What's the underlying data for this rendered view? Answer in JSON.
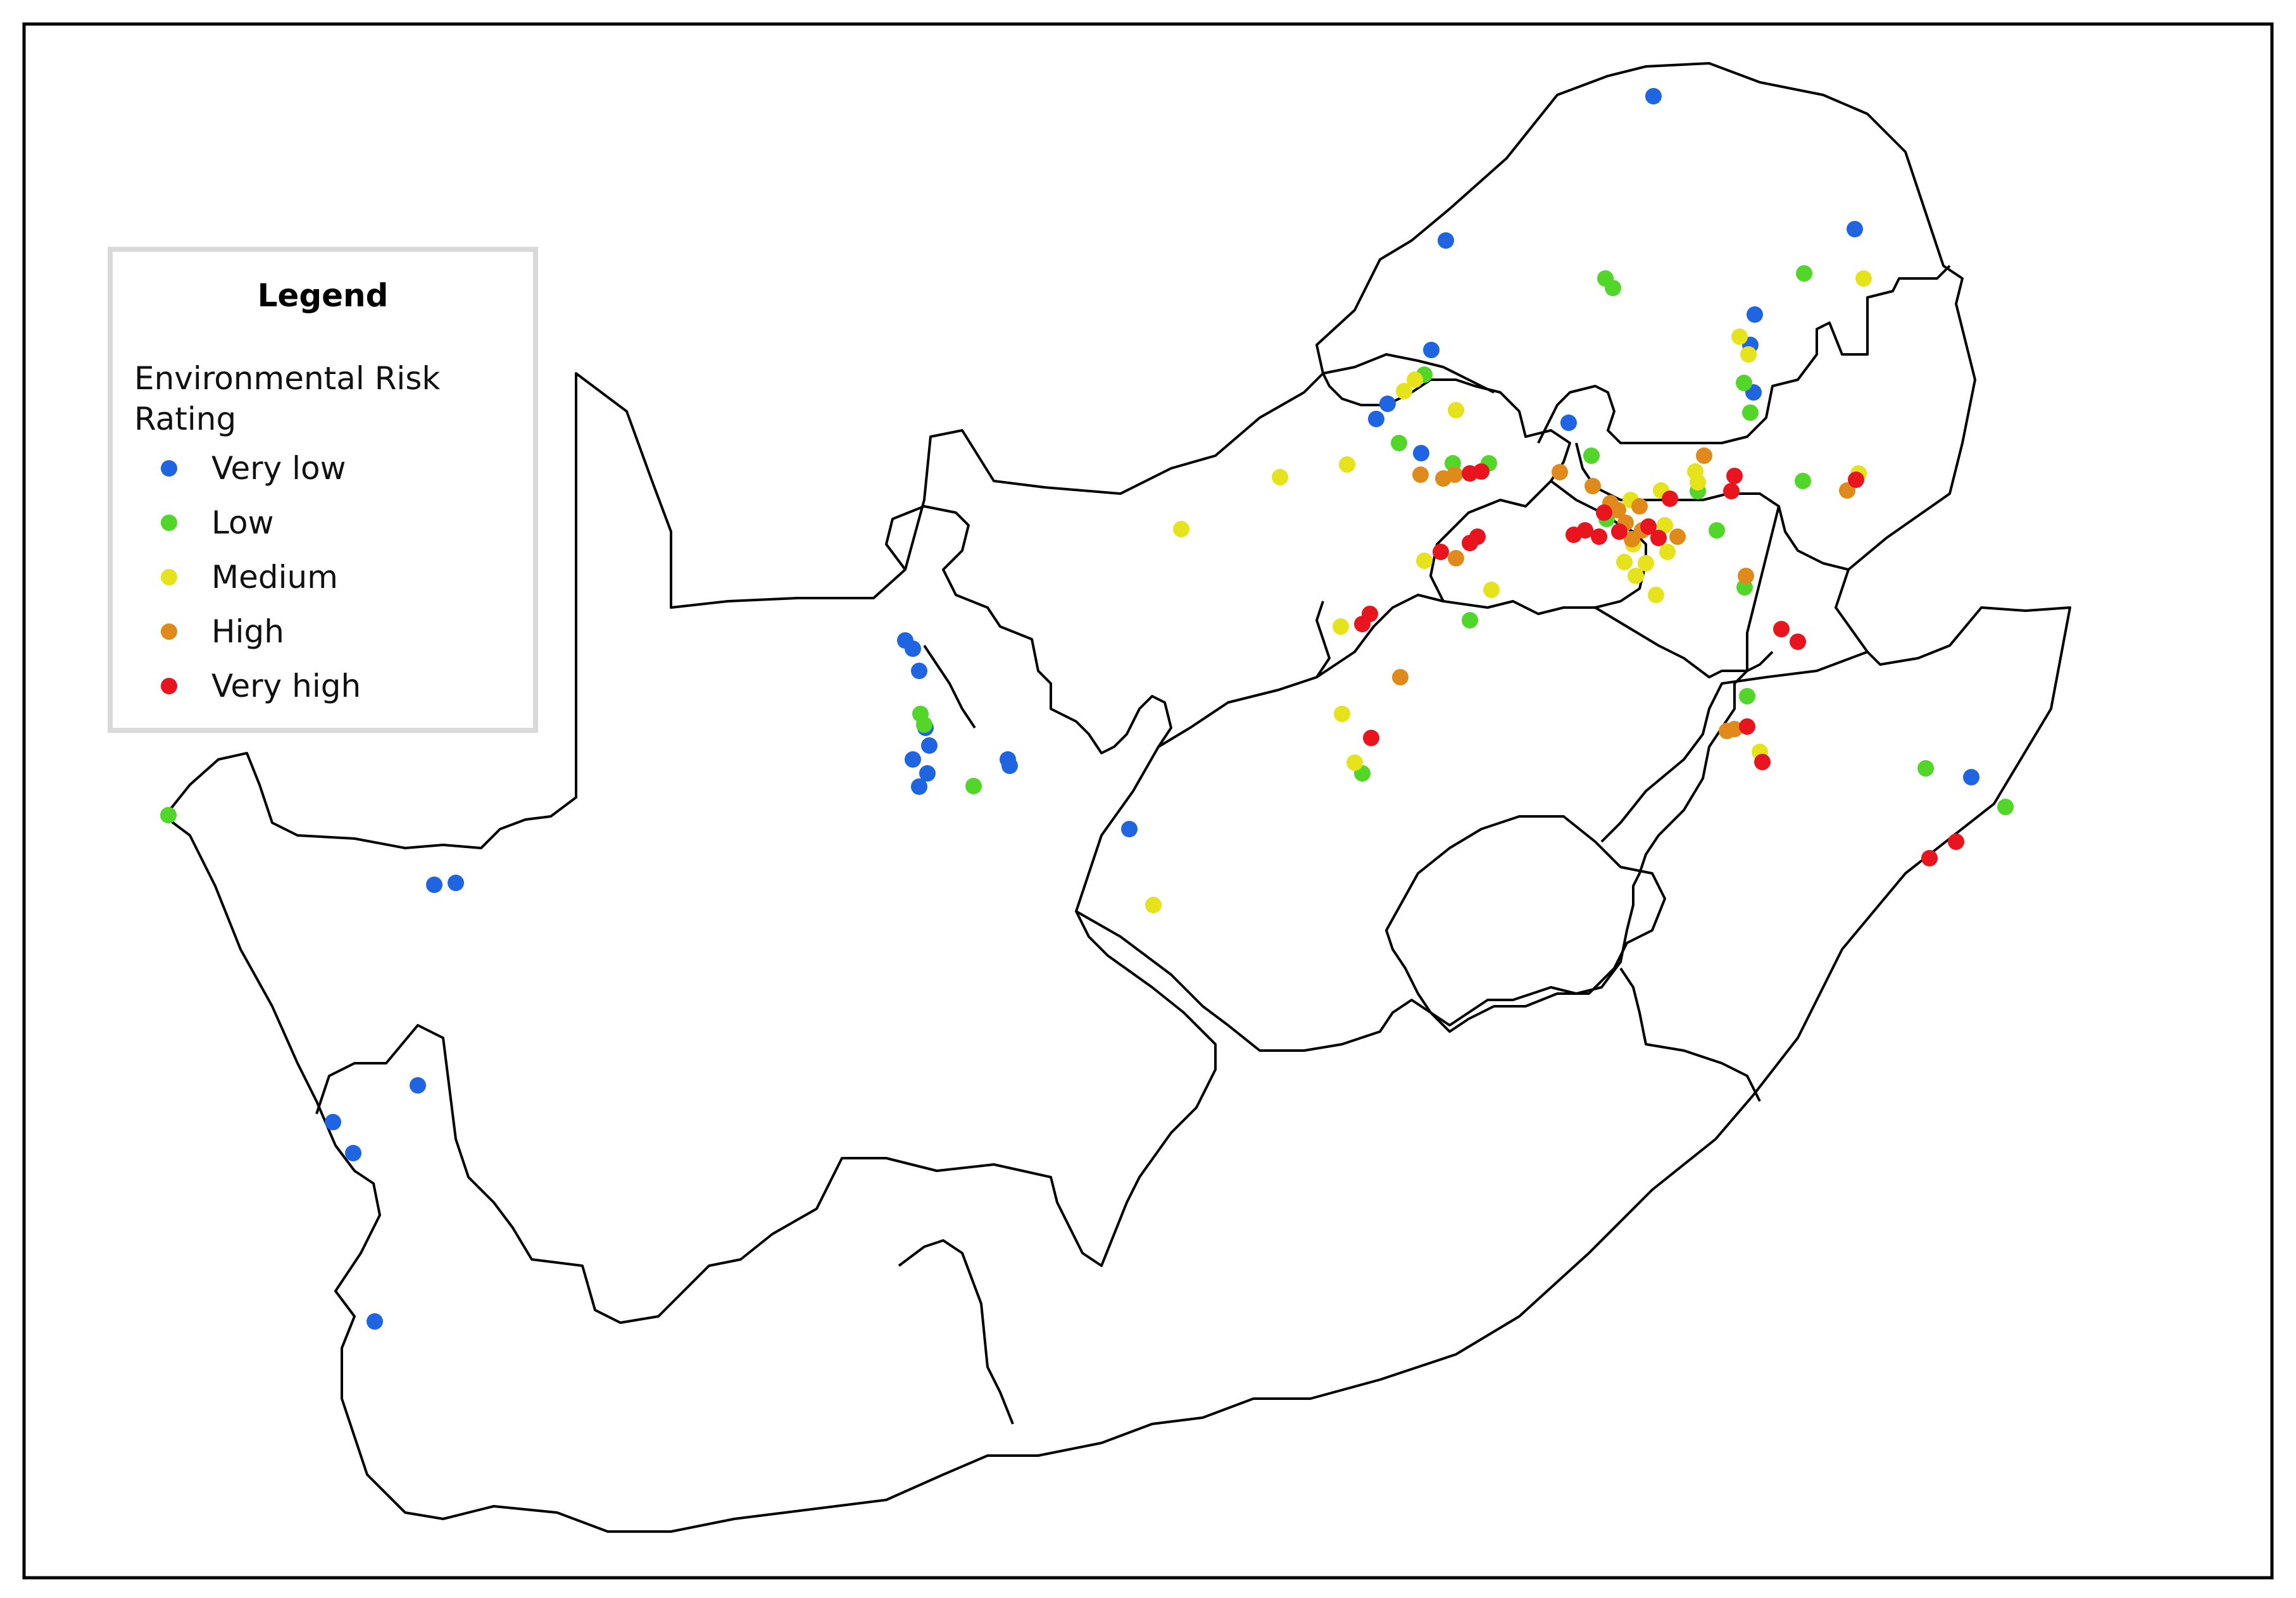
{
  "legend": {
    "title": "Legend",
    "subtitle": "Environmental Risk Rating",
    "items": [
      {
        "label": "Very low",
        "color": "#1f64e0"
      },
      {
        "label": "Low",
        "color": "#52d62a"
      },
      {
        "label": "Medium",
        "color": "#e6e31c"
      },
      {
        "label": "High",
        "color": "#e08a1c"
      },
      {
        "label": "Very high",
        "color": "#e8141e"
      }
    ]
  }
}
